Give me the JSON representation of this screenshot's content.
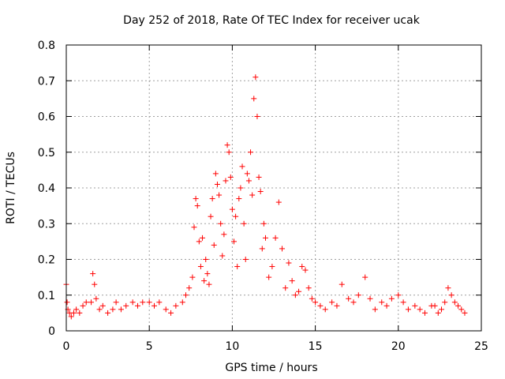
{
  "chart_data": {
    "type": "scatter",
    "title": "Day 252 of 2018, Rate Of TEC Index for receiver ucak",
    "xlabel": "GPS time / hours",
    "ylabel": "ROTI / TECUs",
    "xlim": [
      0,
      25
    ],
    "ylim": [
      0,
      0.8
    ],
    "xticks": [
      0,
      5,
      10,
      15,
      20,
      25
    ],
    "yticks": [
      0,
      0.1,
      0.2,
      0.3,
      0.4,
      0.5,
      0.6,
      0.7,
      0.8
    ],
    "xtick_labels": [
      "0",
      "5",
      "10",
      "15",
      "20",
      "25"
    ],
    "ytick_labels": [
      "0",
      "0.1",
      "0.2",
      "0.3",
      "0.4",
      "0.5",
      "0.6",
      "0.7",
      "0.8"
    ],
    "grid": true,
    "marker": "+",
    "color": "#ff0000",
    "series": [
      {
        "name": "ROTI",
        "x": [
          0.0,
          0.05,
          0.1,
          0.2,
          0.3,
          0.45,
          0.6,
          0.8,
          1.0,
          1.2,
          1.5,
          1.6,
          1.7,
          1.8,
          2.0,
          2.2,
          2.5,
          2.8,
          3.0,
          3.3,
          3.6,
          4.0,
          4.3,
          4.6,
          5.0,
          5.3,
          5.6,
          6.0,
          6.3,
          6.6,
          7.0,
          7.2,
          7.4,
          7.6,
          7.7,
          7.8,
          7.9,
          8.0,
          8.1,
          8.2,
          8.3,
          8.4,
          8.5,
          8.6,
          8.7,
          8.8,
          8.9,
          9.0,
          9.1,
          9.2,
          9.3,
          9.4,
          9.5,
          9.6,
          9.7,
          9.8,
          9.9,
          10.0,
          10.1,
          10.2,
          10.3,
          10.4,
          10.5,
          10.6,
          10.7,
          10.8,
          10.9,
          11.0,
          11.1,
          11.2,
          11.3,
          11.4,
          11.5,
          11.6,
          11.7,
          11.8,
          11.9,
          12.0,
          12.2,
          12.4,
          12.6,
          12.8,
          13.0,
          13.2,
          13.4,
          13.6,
          13.8,
          14.0,
          14.2,
          14.4,
          14.6,
          14.8,
          15.0,
          15.3,
          15.6,
          16.0,
          16.3,
          16.6,
          17.0,
          17.3,
          17.6,
          18.0,
          18.3,
          18.6,
          19.0,
          19.3,
          19.6,
          20.0,
          20.3,
          20.6,
          21.0,
          21.3,
          21.6,
          22.0,
          22.2,
          22.4,
          22.6,
          22.8,
          23.0,
          23.2,
          23.4,
          23.6,
          23.8,
          24.0
        ],
        "y": [
          0.13,
          0.08,
          0.06,
          0.05,
          0.04,
          0.05,
          0.06,
          0.05,
          0.07,
          0.08,
          0.08,
          0.16,
          0.13,
          0.09,
          0.06,
          0.07,
          0.05,
          0.06,
          0.08,
          0.06,
          0.07,
          0.08,
          0.07,
          0.08,
          0.08,
          0.07,
          0.08,
          0.06,
          0.05,
          0.07,
          0.08,
          0.1,
          0.12,
          0.15,
          0.29,
          0.37,
          0.35,
          0.25,
          0.18,
          0.26,
          0.14,
          0.2,
          0.16,
          0.13,
          0.32,
          0.37,
          0.24,
          0.44,
          0.41,
          0.38,
          0.3,
          0.21,
          0.27,
          0.42,
          0.52,
          0.5,
          0.43,
          0.34,
          0.25,
          0.32,
          0.18,
          0.37,
          0.4,
          0.46,
          0.3,
          0.2,
          0.44,
          0.42,
          0.5,
          0.38,
          0.65,
          0.71,
          0.6,
          0.43,
          0.39,
          0.23,
          0.3,
          0.26,
          0.15,
          0.18,
          0.26,
          0.36,
          0.23,
          0.12,
          0.19,
          0.14,
          0.1,
          0.11,
          0.18,
          0.17,
          0.12,
          0.09,
          0.08,
          0.07,
          0.06,
          0.08,
          0.07,
          0.13,
          0.09,
          0.08,
          0.1,
          0.15,
          0.09,
          0.06,
          0.08,
          0.07,
          0.09,
          0.1,
          0.08,
          0.06,
          0.07,
          0.06,
          0.05,
          0.07,
          0.07,
          0.05,
          0.06,
          0.08,
          0.12,
          0.1,
          0.08,
          0.07,
          0.06,
          0.05
        ]
      }
    ]
  }
}
